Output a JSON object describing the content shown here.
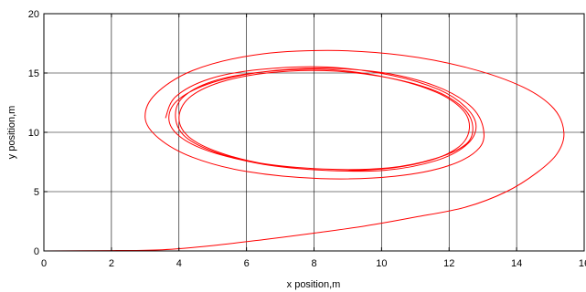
{
  "chart_data": {
    "type": "line",
    "title": "",
    "xlabel": "x position,m",
    "ylabel": "y position,m",
    "xlim": [
      0,
      16
    ],
    "ylim": [
      0,
      20
    ],
    "xticks": [
      0,
      2,
      4,
      6,
      8,
      10,
      12,
      14,
      16
    ],
    "yticks": [
      0,
      5,
      10,
      15,
      20
    ],
    "xtick_labels": [
      "0",
      "2",
      "4",
      "6",
      "8",
      "10",
      "12",
      "14",
      "16"
    ],
    "ytick_labels": [
      "0",
      "5",
      "10",
      "15",
      "20"
    ],
    "grid": true,
    "line_color": "#ff0000",
    "axis_color": "#000000",
    "series": [
      {
        "values_xy": [
          [
            0.0,
            0.0
          ],
          [
            2.0,
            0.03
          ],
          [
            3.5,
            0.1
          ],
          [
            5.0,
            0.45
          ],
          [
            6.5,
            0.95
          ],
          [
            8.0,
            1.5
          ],
          [
            9.5,
            2.1
          ],
          [
            11.0,
            2.85
          ],
          [
            12.5,
            3.7
          ],
          [
            13.7,
            5.0
          ],
          [
            14.6,
            6.6
          ],
          [
            15.2,
            8.2
          ],
          [
            15.4,
            10.0
          ],
          [
            15.1,
            12.0
          ],
          [
            14.2,
            13.8
          ],
          [
            12.6,
            15.4
          ],
          [
            10.6,
            16.5
          ],
          [
            8.4,
            16.9
          ],
          [
            6.2,
            16.5
          ],
          [
            4.4,
            15.2
          ],
          [
            3.3,
            13.2
          ],
          [
            3.0,
            11.2
          ],
          [
            3.4,
            9.5
          ],
          [
            4.4,
            7.9
          ],
          [
            6.0,
            6.7
          ],
          [
            8.2,
            6.1
          ],
          [
            10.4,
            6.3
          ],
          [
            12.0,
            7.2
          ],
          [
            12.9,
            8.7
          ],
          [
            13.0,
            10.5
          ],
          [
            12.6,
            12.3
          ],
          [
            11.6,
            13.9
          ],
          [
            10.1,
            15.0
          ],
          [
            8.3,
            15.4
          ],
          [
            6.5,
            15.1
          ],
          [
            5.0,
            14.2
          ],
          [
            4.0,
            12.8
          ],
          [
            3.7,
            11.2
          ],
          [
            4.0,
            9.7
          ],
          [
            4.9,
            8.4
          ],
          [
            6.4,
            7.4
          ],
          [
            8.3,
            6.9
          ],
          [
            10.2,
            7.0
          ],
          [
            11.6,
            7.8
          ],
          [
            12.5,
            9.0
          ],
          [
            12.7,
            10.5
          ],
          [
            12.4,
            12.1
          ],
          [
            11.5,
            13.6
          ],
          [
            10.0,
            14.7
          ],
          [
            8.3,
            15.2
          ],
          [
            6.6,
            15.0
          ],
          [
            5.2,
            14.2
          ],
          [
            4.3,
            12.9
          ],
          [
            4.0,
            11.2
          ],
          [
            4.3,
            9.6
          ],
          [
            5.2,
            8.3
          ],
          [
            6.6,
            7.3
          ],
          [
            8.3,
            6.8
          ],
          [
            10.0,
            6.9
          ],
          [
            11.4,
            7.6
          ],
          [
            12.3,
            8.8
          ],
          [
            12.6,
            10.3
          ],
          [
            12.4,
            11.9
          ],
          [
            11.6,
            13.4
          ],
          [
            10.2,
            14.6
          ],
          [
            8.4,
            15.3
          ],
          [
            6.5,
            15.1
          ],
          [
            5.0,
            14.3
          ],
          [
            4.1,
            12.9
          ],
          [
            3.9,
            11.2
          ],
          [
            4.2,
            9.6
          ],
          [
            5.1,
            8.3
          ],
          [
            6.5,
            7.3
          ],
          [
            8.3,
            6.8
          ],
          [
            10.1,
            6.8
          ],
          [
            11.6,
            7.6
          ],
          [
            12.5,
            8.9
          ],
          [
            12.8,
            10.5
          ],
          [
            12.5,
            12.1
          ],
          [
            11.7,
            13.6
          ],
          [
            10.3,
            14.8
          ],
          [
            8.4,
            15.5
          ],
          [
            6.4,
            15.3
          ],
          [
            4.9,
            14.5
          ],
          [
            3.9,
            13.0
          ],
          [
            3.6,
            11.2
          ]
        ]
      }
    ]
  }
}
